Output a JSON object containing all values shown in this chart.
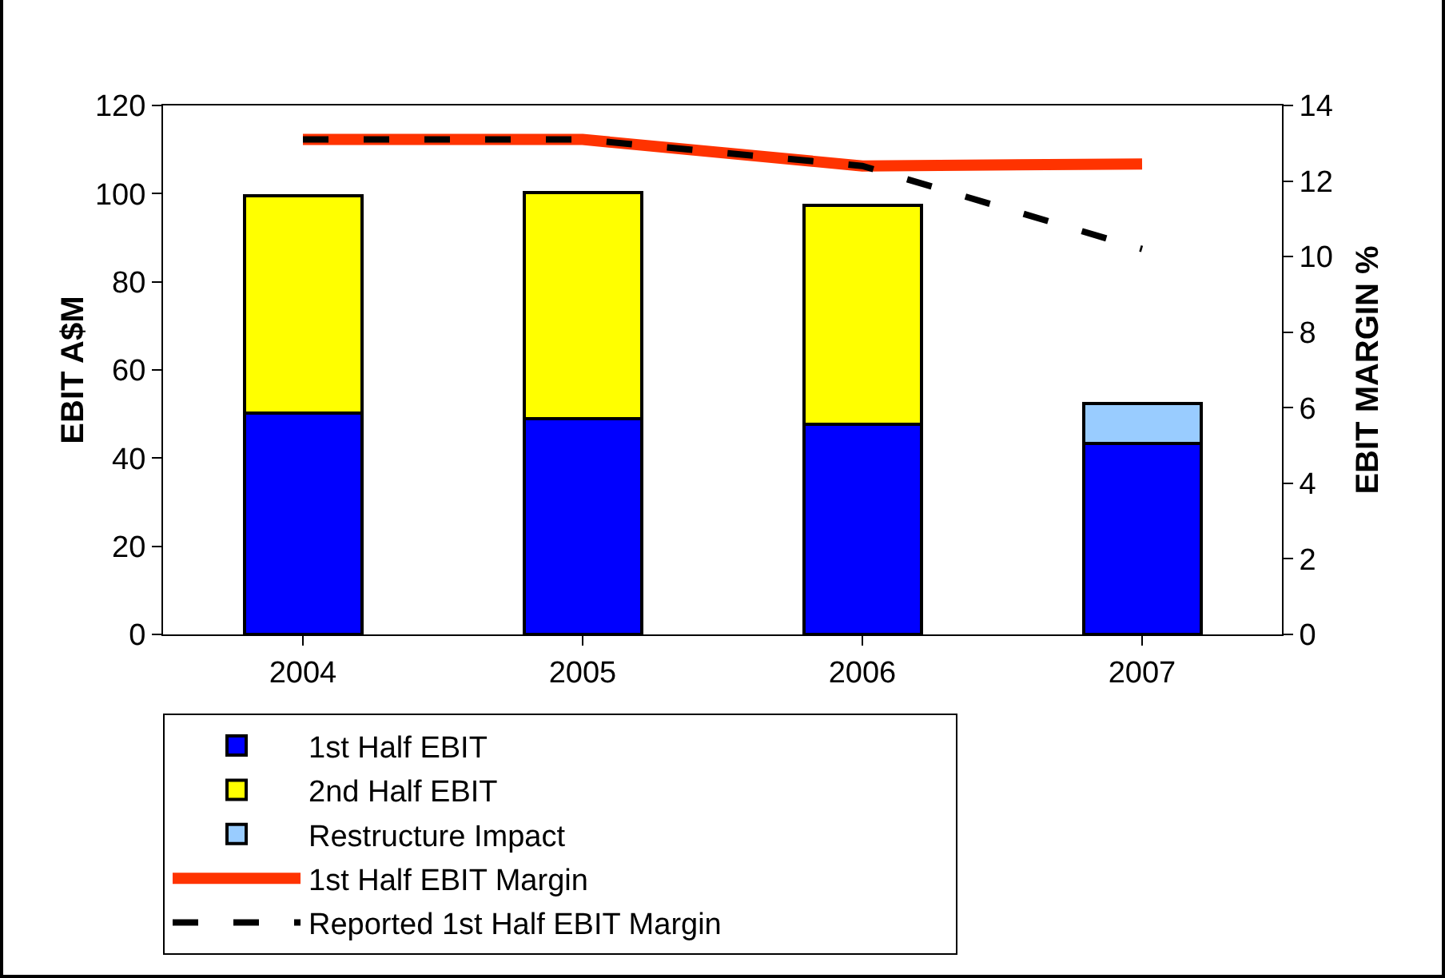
{
  "chart_data": {
    "type": "bar",
    "stacked": true,
    "categories": [
      "2004",
      "2005",
      "2006",
      "2007"
    ],
    "ylabel": "EBIT A$M",
    "y2label": "EBIT MARGIN %",
    "ylim": [
      0,
      120
    ],
    "yticks": [
      0,
      20,
      40,
      60,
      80,
      100,
      120
    ],
    "y2lim": [
      0,
      14
    ],
    "y2ticks": [
      0,
      2,
      4,
      6,
      8,
      10,
      12,
      14
    ],
    "series": [
      {
        "name": "1st Half EBIT",
        "color": "#0000ff",
        "values": [
          50.3,
          48.9,
          47.6,
          43.4
        ]
      },
      {
        "name": "2nd Half EBIT",
        "color": "#ffff00",
        "values": [
          49.2,
          51.4,
          49.7,
          null
        ]
      },
      {
        "name": "Restructure Impact",
        "color": "#99ccff",
        "values": [
          null,
          null,
          null,
          8.9
        ]
      },
      {
        "name": "1st Half EBIT Margin",
        "type": "line",
        "axis": "y2",
        "color": "#ff3300",
        "line_style": "solid",
        "values": [
          13.1,
          13.1,
          12.4,
          12.45
        ]
      },
      {
        "name": "Reported 1st Half EBIT Margin",
        "type": "line",
        "axis": "y2",
        "color": "#000000",
        "line_style": "dashed",
        "values": [
          13.1,
          13.1,
          12.4,
          10.2
        ]
      }
    ],
    "grid": false,
    "legend": "bottom",
    "marker": "none"
  }
}
